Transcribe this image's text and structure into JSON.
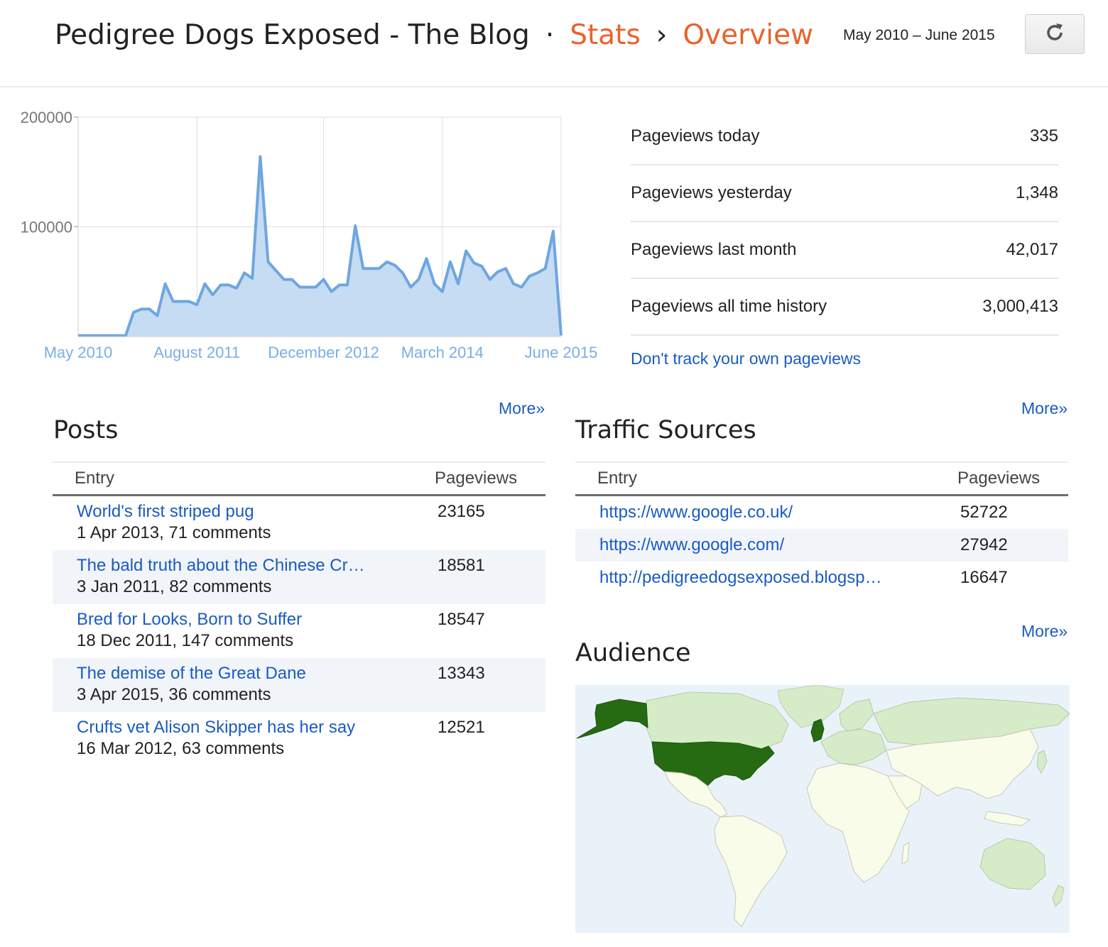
{
  "header": {
    "blog_name": "Pedigree Dogs Exposed - The Blog",
    "dot": "·",
    "crumb_stats": "Stats",
    "crumb_sep": "›",
    "crumb_overview": "Overview",
    "date_range": "May 2010 – June 2015",
    "refresh_icon": "refresh-icon"
  },
  "chart_data": {
    "type": "area",
    "title": "",
    "xlabel": "",
    "ylabel": "",
    "ylim": [
      0,
      200000
    ],
    "y_ticks": [
      "200000",
      "100000"
    ],
    "x_tick_labels": [
      "May 2010",
      "August 2011",
      "December 2012",
      "March 2014",
      "June 2015"
    ],
    "grid": true,
    "fill_color": "#c6dcf3",
    "line_color": "#6ea6e0",
    "series": [
      {
        "values": [
          800,
          800,
          800,
          800,
          800,
          800,
          800,
          22000,
          25000,
          25000,
          19000,
          48000,
          32000,
          32000,
          32000,
          29000,
          48000,
          38000,
          47000,
          47000,
          44000,
          58000,
          53000,
          164000,
          68000,
          60000,
          52000,
          52000,
          45000,
          45000,
          45000,
          52000,
          41000,
          47000,
          47000,
          101000,
          62000,
          62000,
          62000,
          68000,
          65000,
          58000,
          45000,
          52000,
          71000,
          48000,
          41000,
          68000,
          48000,
          78000,
          67000,
          64000,
          52000,
          59000,
          62000,
          48000,
          45000,
          55000,
          58000,
          62000,
          96000,
          1000
        ]
      }
    ]
  },
  "stats": {
    "rows": [
      {
        "label": "Pageviews today",
        "value": "335"
      },
      {
        "label": "Pageviews yesterday",
        "value": "1,348"
      },
      {
        "label": "Pageviews last month",
        "value": "42,017"
      },
      {
        "label": "Pageviews all time history",
        "value": "3,000,413"
      }
    ],
    "dont_track": "Don't track your own pageviews"
  },
  "posts": {
    "title": "Posts",
    "more": "More»",
    "col_entry": "Entry",
    "col_pageviews": "Pageviews",
    "rows": [
      {
        "title": "World's first striped pug",
        "meta": "1 Apr 2013, 71 comments",
        "views": "23165"
      },
      {
        "title": "The bald truth about the Chinese Cr…",
        "meta": "3 Jan 2011, 82 comments",
        "views": "18581"
      },
      {
        "title": "Bred for Looks, Born to Suffer",
        "meta": "18 Dec 2011, 147 comments",
        "views": "18547"
      },
      {
        "title": "The demise of the Great Dane",
        "meta": "3 Apr 2015, 36 comments",
        "views": "13343"
      },
      {
        "title": "Crufts vet Alison Skipper has her say",
        "meta": "16 Mar 2012, 63 comments",
        "views": "12521"
      }
    ]
  },
  "traffic": {
    "title": "Traffic Sources",
    "more": "More»",
    "col_entry": "Entry",
    "col_pageviews": "Pageviews",
    "rows": [
      {
        "source": "https://www.google.co.uk/",
        "views": "52722"
      },
      {
        "source": "https://www.google.com/",
        "views": "27942"
      },
      {
        "source": "http://pedigreedogsexposed.blogsp…",
        "views": "16647"
      }
    ]
  },
  "audience": {
    "title": "Audience",
    "more": "More»",
    "colors": {
      "ocean": "#eaf2f9",
      "none": "#f9fce9",
      "low": "#d6ecc8",
      "high": "#266b12"
    }
  }
}
